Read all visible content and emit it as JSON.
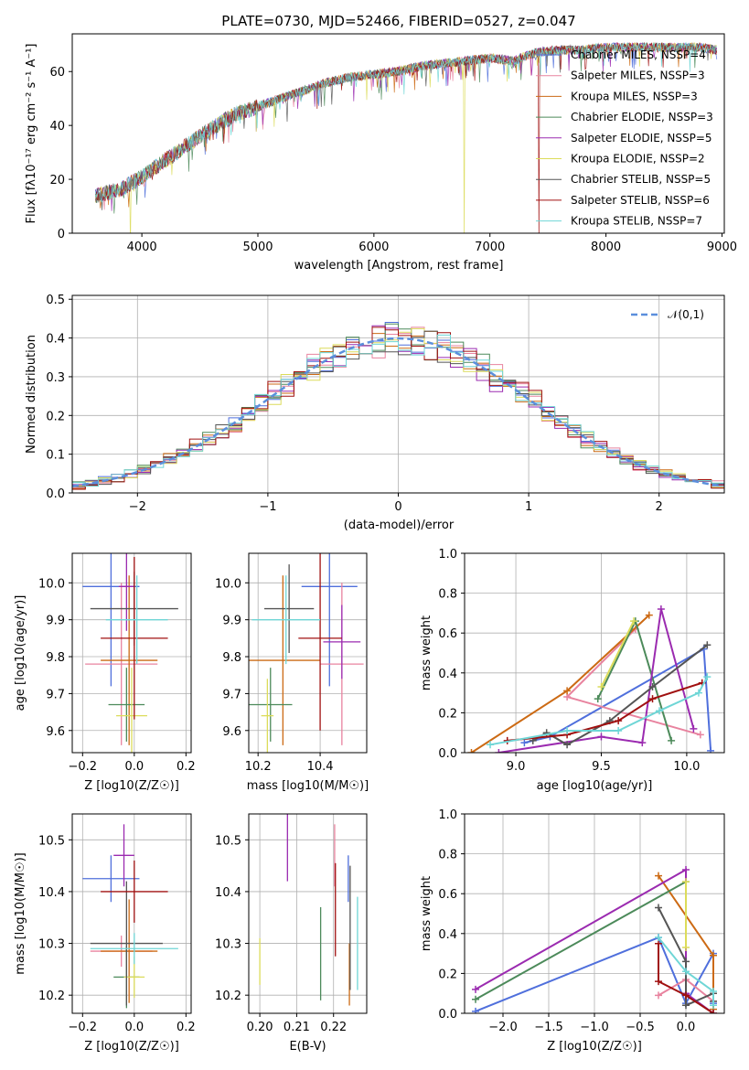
{
  "colors": {
    "Chabrier MILES": "#4f6fdc",
    "Salpeter MILES": "#e8839f",
    "Kroupa MILES": "#cc6a14",
    "Chabrier ELODIE": "#4c8a5a",
    "Salpeter ELODIE": "#9b2bb0",
    "Kroupa ELODIE": "#dcdc5a",
    "Chabrier STELIB": "#555555",
    "Salpeter STELIB": "#a01010",
    "Kroupa STELIB": "#6fd6d6"
  },
  "chart_data": [
    {
      "id": "spectrum",
      "type": "line",
      "title": "PLATE=0730, MJD=52466, FIBERID=0527, z=0.047",
      "xlabel": "wavelength [Angstrom, rest frame]",
      "ylabel": "Flux [fλ10⁻¹⁷ erg cm⁻² s⁻¹ A⁻¹]",
      "xlim": [
        3400,
        9020
      ],
      "ylim": [
        0,
        74
      ],
      "xticks": [
        4000,
        5000,
        6000,
        7000,
        8000,
        9000
      ],
      "yticks": [
        0,
        20,
        40,
        60
      ],
      "legend_position": "upper-right",
      "legend": [
        {
          "label": "Chabrier MILES, NSSP=4",
          "color": "Chabrier MILES"
        },
        {
          "label": "Salpeter MILES, NSSP=3",
          "color": "Salpeter MILES"
        },
        {
          "label": "Kroupa MILES, NSSP=3",
          "color": "Kroupa MILES"
        },
        {
          "label": "Chabrier ELODIE, NSSP=3",
          "color": "Chabrier ELODIE"
        },
        {
          "label": "Salpeter ELODIE, NSSP=5",
          "color": "Salpeter ELODIE"
        },
        {
          "label": "Kroupa ELODIE, NSSP=2",
          "color": "Kroupa ELODIE"
        },
        {
          "label": "Chabrier STELIB, NSSP=5",
          "color": "Chabrier STELIB"
        },
        {
          "label": "Salpeter STELIB, NSSP=6",
          "color": "Salpeter STELIB"
        },
        {
          "label": "Kroupa STELIB, NSSP=7",
          "color": "Kroupa STELIB"
        }
      ],
      "continuum": [
        [
          3600,
          14
        ],
        [
          3800,
          16
        ],
        [
          4000,
          21
        ],
        [
          4200,
          27
        ],
        [
          4400,
          33
        ],
        [
          4600,
          39
        ],
        [
          4800,
          44
        ],
        [
          5000,
          47
        ],
        [
          5200,
          50
        ],
        [
          5400,
          53
        ],
        [
          5600,
          56
        ],
        [
          5800,
          58
        ],
        [
          6000,
          59
        ],
        [
          6200,
          60
        ],
        [
          6400,
          62
        ],
        [
          6600,
          63
        ],
        [
          6800,
          64
        ],
        [
          7000,
          65
        ],
        [
          7200,
          64
        ],
        [
          7400,
          67
        ],
        [
          7600,
          68
        ],
        [
          7800,
          68
        ],
        [
          8000,
          69
        ],
        [
          8200,
          69
        ],
        [
          8400,
          69
        ],
        [
          8800,
          69
        ],
        [
          8960,
          68
        ]
      ],
      "spectrum_wavelength_range": [
        3600,
        8960
      ],
      "dropouts": [
        {
          "wavelength": 3900,
          "series": "Kroupa ELODIE"
        },
        {
          "wavelength": 6780,
          "series": "Kroupa ELODIE"
        },
        {
          "wavelength": 7420,
          "series": "Salpeter STELIB"
        }
      ]
    },
    {
      "id": "residuals",
      "type": "line",
      "xlabel": "(data-model)/error",
      "ylabel": "Normed distribution",
      "xlim": [
        -2.5,
        2.5
      ],
      "ylim": [
        0,
        0.51
      ],
      "xticks": [
        -2,
        -1,
        0,
        1,
        2
      ],
      "yticks": [
        0.0,
        0.1,
        0.2,
        0.3,
        0.4,
        0.5
      ],
      "grid": true,
      "legend_position": "upper-right",
      "gaussian": {
        "label": "𝒩(0,1)",
        "mean": 0,
        "sigma": 1,
        "color": "#5b8fdc"
      },
      "histogram_bin_width": 0.1
    },
    {
      "id": "age-vs-Z",
      "type": "scatter",
      "xlabel": "Z [log10(Z/Z☉)]",
      "ylabel": "age [log10(age/yr)]",
      "xlim": [
        -0.24,
        0.22
      ],
      "ylim": [
        9.54,
        10.08
      ],
      "xticks": [
        -0.2,
        0.0,
        0.2
      ],
      "xticklabels": [
        "−0.2",
        "0.0",
        "0.2"
      ],
      "yticks": [
        9.6,
        9.7,
        9.8,
        9.9,
        10.0
      ],
      "grid": true,
      "points": [
        {
          "series": "Chabrier MILES",
          "x": -0.09,
          "xerr": 0.11,
          "y": 9.99,
          "yerr": 0.27
        },
        {
          "series": "Salpeter MILES",
          "x": -0.05,
          "xerr": 0.14,
          "y": 9.78,
          "yerr": 0.22
        },
        {
          "series": "Kroupa MILES",
          "x": -0.02,
          "xerr": 0.11,
          "y": 9.79,
          "yerr": 0.23
        },
        {
          "series": "Chabrier ELODIE",
          "x": -0.03,
          "xerr": 0.07,
          "y": 9.67,
          "yerr": 0.1
        },
        {
          "series": "Salpeter ELODIE",
          "x": -0.03,
          "xerr": 0.03,
          "y": 9.99,
          "yerr": 0.12
        },
        {
          "series": "Kroupa ELODIE",
          "x": -0.01,
          "xerr": 0.06,
          "y": 9.64,
          "yerr": 0.13
        },
        {
          "series": "Chabrier STELIB",
          "x": 0.0,
          "xerr": 0.17,
          "y": 9.93,
          "yerr": 0.1
        },
        {
          "series": "Salpeter STELIB",
          "x": 0.0,
          "xerr": 0.13,
          "y": 9.85,
          "yerr": 0.22
        },
        {
          "series": "Kroupa STELIB",
          "x": 0.01,
          "xerr": 0.12,
          "y": 9.9,
          "yerr": 0.12
        }
      ]
    },
    {
      "id": "age-vs-mass",
      "type": "scatter",
      "xlabel": "mass [log10(M/M☉)]",
      "ylabel": "",
      "xlim": [
        10.17,
        10.55
      ],
      "ylim": [
        9.54,
        10.08
      ],
      "xticks": [
        10.2,
        10.4
      ],
      "yticks": [
        9.6,
        9.7,
        9.8,
        9.9,
        10.0
      ],
      "grid": true,
      "points": [
        {
          "series": "Chabrier MILES",
          "x": 10.43,
          "xerr": 0.09,
          "y": 9.99,
          "yerr": 0.27
        },
        {
          "series": "Salpeter MILES",
          "x": 10.47,
          "xerr": 0.07,
          "y": 9.78,
          "yerr": 0.22
        },
        {
          "series": "Kroupa MILES",
          "x": 10.28,
          "xerr": 0.12,
          "y": 9.79,
          "yerr": 0.23
        },
        {
          "series": "Chabrier ELODIE",
          "x": 10.24,
          "xerr": 0.07,
          "y": 9.67,
          "yerr": 0.1
        },
        {
          "series": "Salpeter ELODIE",
          "x": 10.47,
          "xerr": 0.06,
          "y": 9.84,
          "yerr": 0.1
        },
        {
          "series": "Kroupa ELODIE",
          "x": 10.23,
          "xerr": 0.02,
          "y": 9.64,
          "yerr": 0.1
        },
        {
          "series": "Chabrier STELIB",
          "x": 10.3,
          "xerr": 0.08,
          "y": 9.93,
          "yerr": 0.12
        },
        {
          "series": "Salpeter STELIB",
          "x": 10.4,
          "xerr": 0.07,
          "y": 9.85,
          "yerr": 0.25
        },
        {
          "series": "Kroupa STELIB",
          "x": 10.29,
          "xerr": 0.11,
          "y": 9.9,
          "yerr": 0.12
        }
      ]
    },
    {
      "id": "weight-vs-age",
      "type": "line",
      "xlabel": "age [log10(age/yr)]",
      "ylabel": "mass weight",
      "xlim": [
        8.7,
        10.22
      ],
      "ylim": [
        0,
        1.0
      ],
      "xticks": [
        9.0,
        9.5,
        10.0
      ],
      "yticks": [
        0.0,
        0.2,
        0.4,
        0.6,
        0.8,
        1.0
      ],
      "grid": true,
      "series": [
        {
          "name": "Chabrier MILES",
          "x": [
            10.14,
            10.1,
            9.2,
            9.05
          ],
          "y": [
            0.01,
            0.52,
            0.08,
            0.05
          ]
        },
        {
          "name": "Salpeter MILES",
          "x": [
            9.7,
            9.3,
            10.08
          ],
          "y": [
            0.62,
            0.28,
            0.09
          ]
        },
        {
          "name": "Kroupa MILES",
          "x": [
            8.74,
            9.3,
            9.78
          ],
          "y": [
            0.0,
            0.31,
            0.69
          ]
        },
        {
          "name": "Chabrier ELODIE",
          "x": [
            9.48,
            9.7,
            9.91
          ],
          "y": [
            0.27,
            0.66,
            0.06
          ]
        },
        {
          "name": "Salpeter ELODIE",
          "x": [
            8.9,
            9.5,
            9.74,
            9.85,
            10.04
          ],
          "y": [
            0.0,
            0.08,
            0.05,
            0.72,
            0.12
          ]
        },
        {
          "name": "Kroupa ELODIE",
          "x": [
            9.5,
            9.69
          ],
          "y": [
            0.33,
            0.66
          ]
        },
        {
          "name": "Chabrier STELIB",
          "x": [
            9.1,
            9.18,
            9.3,
            9.55,
            9.8,
            10.12
          ],
          "y": [
            0.06,
            0.1,
            0.04,
            0.16,
            0.33,
            0.54
          ]
        },
        {
          "name": "Salpeter STELIB",
          "x": [
            8.95,
            9.3,
            9.6,
            9.8,
            10.09
          ],
          "y": [
            0.06,
            0.09,
            0.16,
            0.27,
            0.35
          ]
        },
        {
          "name": "Kroupa STELIB",
          "x": [
            8.85,
            9.3,
            9.6,
            9.84,
            10.07,
            10.12
          ],
          "y": [
            0.04,
            0.11,
            0.11,
            0.21,
            0.3,
            0.38
          ]
        }
      ]
    },
    {
      "id": "mass-vs-Z",
      "type": "scatter",
      "xlabel": "Z [log10(Z/Z☉)]",
      "ylabel": "mass [log10(M/M☉)]",
      "xlim": [
        -0.24,
        0.22
      ],
      "ylim": [
        10.165,
        10.55
      ],
      "xticks": [
        -0.2,
        0.0,
        0.2
      ],
      "xticklabels": [
        "−0.2",
        "0.0",
        "0.2"
      ],
      "yticks": [
        10.2,
        10.3,
        10.4,
        10.5
      ],
      "grid": true,
      "points": [
        {
          "series": "Chabrier MILES",
          "x": -0.09,
          "xerr": 0.11,
          "y": 10.425,
          "yerr": 0.045
        },
        {
          "series": "Salpeter MILES",
          "x": -0.05,
          "xerr": 0.12,
          "y": 10.285,
          "yerr": 0.03
        },
        {
          "series": "Kroupa MILES",
          "x": -0.02,
          "xerr": 0.11,
          "y": 10.285,
          "yerr": 0.1
        },
        {
          "series": "Chabrier ELODIE",
          "x": -0.03,
          "xerr": 0.05,
          "y": 10.235,
          "yerr": 0.06
        },
        {
          "series": "Salpeter ELODIE",
          "x": -0.04,
          "xerr": 0.04,
          "y": 10.47,
          "yerr": 0.06
        },
        {
          "series": "Kroupa ELODIE",
          "x": 0.0,
          "xerr": 0.04,
          "y": 10.235,
          "yerr": 0.04
        },
        {
          "series": "Chabrier STELIB",
          "x": -0.03,
          "xerr": 0.14,
          "y": 10.3,
          "yerr": 0.12
        },
        {
          "series": "Salpeter STELIB",
          "x": 0.0,
          "xerr": 0.13,
          "y": 10.4,
          "yerr": 0.06
        },
        {
          "series": "Kroupa STELIB",
          "x": 0.0,
          "xerr": 0.17,
          "y": 10.29,
          "yerr": 0.03
        }
      ]
    },
    {
      "id": "mass-vs-EBV",
      "type": "scatter",
      "xlabel": "E(B-V)",
      "ylabel": "",
      "xlim": [
        0.197,
        0.229
      ],
      "ylim": [
        10.165,
        10.55
      ],
      "xticks": [
        0.2,
        0.21,
        0.22
      ],
      "xticklabels": [
        "0.20",
        "0.21",
        "0.22"
      ],
      "yticks": [
        10.2,
        10.3,
        10.4,
        10.5
      ],
      "grid": true,
      "points": [
        {
          "series": "Chabrier MILES",
          "x": 0.224,
          "xerr": 0,
          "y": 10.425,
          "yerr": 0.045
        },
        {
          "series": "Salpeter MILES",
          "x": 0.2203,
          "xerr": 0,
          "y": 10.47,
          "yerr": 0.06
        },
        {
          "series": "Kroupa MILES",
          "x": 0.2243,
          "xerr": 0,
          "y": 10.24,
          "yerr": 0.06
        },
        {
          "series": "Chabrier ELODIE",
          "x": 0.2165,
          "xerr": 0,
          "y": 10.28,
          "yerr": 0.09
        },
        {
          "series": "Salpeter ELODIE",
          "x": 0.2075,
          "xerr": 0,
          "y": 10.49,
          "yerr": 0.07
        },
        {
          "series": "Kroupa ELODIE",
          "x": 0.2,
          "xerr": 0,
          "y": 10.265,
          "yerr": 0.045
        },
        {
          "series": "Chabrier STELIB",
          "x": 0.2245,
          "xerr": 0,
          "y": 10.33,
          "yerr": 0.12
        },
        {
          "series": "Salpeter STELIB",
          "x": 0.2205,
          "xerr": 0,
          "y": 10.365,
          "yerr": 0.09
        },
        {
          "series": "Kroupa STELIB",
          "x": 0.2265,
          "xerr": 0,
          "y": 10.3,
          "yerr": 0.09
        }
      ]
    },
    {
      "id": "weight-vs-Z",
      "type": "line",
      "xlabel": "Z [log10(Z/Z☉)]",
      "ylabel": "mass weight",
      "xlim": [
        -2.42,
        0.42
      ],
      "ylim": [
        0,
        1.0
      ],
      "xticks": [
        -2.0,
        -1.5,
        -1.0,
        -0.5,
        0.0
      ],
      "xticklabels": [
        "−2.0",
        "−1.5",
        "−1.0",
        "−0.5",
        "0.0"
      ],
      "yticks": [
        0.0,
        0.2,
        0.4,
        0.6,
        0.8,
        1.0
      ],
      "grid": true,
      "series": [
        {
          "name": "Chabrier MILES",
          "x": [
            -2.3,
            -0.3,
            0.0,
            0.3,
            0.3
          ],
          "y": [
            0.01,
            0.38,
            0.05,
            0.3,
            0.05
          ]
        },
        {
          "name": "Salpeter MILES",
          "x": [
            -0.3,
            0.0,
            0.3
          ],
          "y": [
            0.09,
            0.17,
            0.06
          ]
        },
        {
          "name": "Kroupa MILES",
          "x": [
            -0.3,
            0.3,
            0.3
          ],
          "y": [
            0.69,
            0.29,
            0.02
          ]
        },
        {
          "name": "Chabrier ELODIE",
          "x": [
            -2.3,
            0.0
          ],
          "y": [
            0.07,
            0.66
          ]
        },
        {
          "name": "Salpeter ELODIE",
          "x": [
            -2.3,
            0.0,
            0.0,
            0.3
          ],
          "y": [
            0.12,
            0.72,
            0.1,
            0.0
          ]
        },
        {
          "name": "Kroupa ELODIE",
          "x": [
            0.0,
            0.0
          ],
          "y": [
            0.66,
            0.33
          ]
        },
        {
          "name": "Chabrier STELIB",
          "x": [
            -0.3,
            0.0,
            0.0,
            0.3,
            0.3
          ],
          "y": [
            0.53,
            0.26,
            0.04,
            0.1,
            0.06
          ]
        },
        {
          "name": "Salpeter STELIB",
          "x": [
            -0.3,
            -0.3,
            0.0,
            0.3
          ],
          "y": [
            0.35,
            0.16,
            0.09,
            0.0
          ]
        },
        {
          "name": "Kroupa STELIB",
          "x": [
            -0.3,
            0.0,
            0.3,
            0.3
          ],
          "y": [
            0.38,
            0.21,
            0.11,
            0.04
          ]
        }
      ]
    }
  ]
}
